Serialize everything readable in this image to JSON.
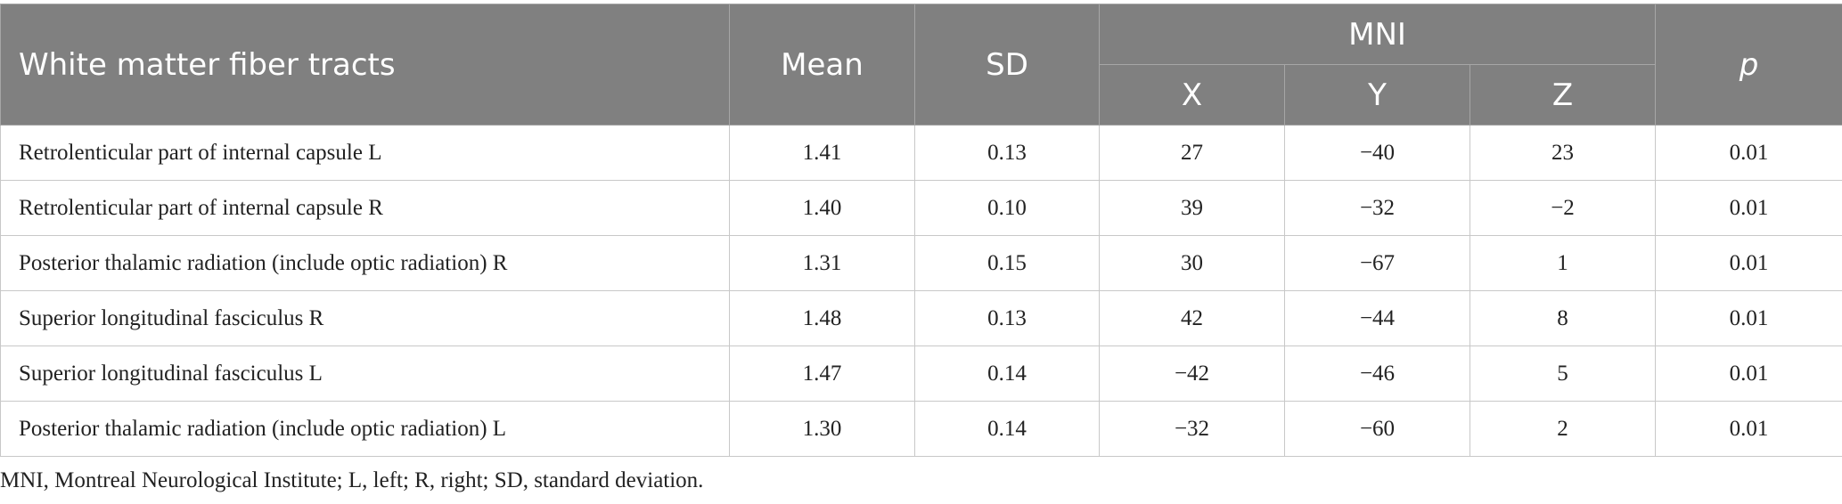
{
  "table": {
    "headers": {
      "tract": "White matter fiber tracts",
      "mean": "Mean",
      "sd": "SD",
      "mni": "MNI",
      "x": "X",
      "y": "Y",
      "z": "Z",
      "p": "p"
    },
    "rows": [
      {
        "tract": "Retrolenticular part of internal capsule L",
        "mean": "1.41",
        "sd": "0.13",
        "x": "27",
        "y": "−40",
        "z": "23",
        "p": "0.01"
      },
      {
        "tract": "Retrolenticular part of internal capsule R",
        "mean": "1.40",
        "sd": "0.10",
        "x": "39",
        "y": "−32",
        "z": "−2",
        "p": "0.01"
      },
      {
        "tract": "Posterior thalamic radiation (include optic radiation) R",
        "mean": "1.31",
        "sd": "0.15",
        "x": "30",
        "y": "−67",
        "z": "1",
        "p": "0.01"
      },
      {
        "tract": "Superior longitudinal fasciculus R",
        "mean": "1.48",
        "sd": "0.13",
        "x": "42",
        "y": "−44",
        "z": "8",
        "p": "0.01"
      },
      {
        "tract": "Superior longitudinal fasciculus L",
        "mean": "1.47",
        "sd": "0.14",
        "x": "−42",
        "y": "−46",
        "z": "5",
        "p": "0.01"
      },
      {
        "tract": "Posterior thalamic radiation (include optic radiation) L",
        "mean": "1.30",
        "sd": "0.14",
        "x": "−32",
        "y": "−60",
        "z": "2",
        "p": "0.01"
      }
    ]
  },
  "footnote": "MNI, Montreal Neurological Institute; L, left; R, right; SD, standard deviation."
}
